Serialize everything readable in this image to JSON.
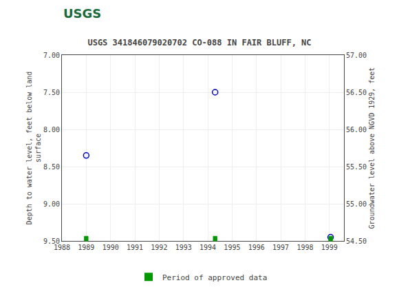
{
  "chart_data": {
    "type": "scatter",
    "title": "USGS 341846079020702 CO-088 IN FAIR BLUFF, NC",
    "annotations": [
      {
        "text": "USGS"
      }
    ],
    "ylabel": "Depth to water level, feet below land\nsurface",
    "y2label": "Groundwater level above NGVD 1929, feet",
    "xlim": [
      1988,
      1999.6
    ],
    "xticks": [
      1988,
      1989,
      1990,
      1991,
      1992,
      1993,
      1994,
      1995,
      1996,
      1997,
      1998,
      1999
    ],
    "ylim": [
      9.5,
      7.0
    ],
    "yticks": [
      {
        "value": 7.0,
        "label": "7.00"
      },
      {
        "value": 7.5,
        "label": "7.50"
      },
      {
        "value": 8.0,
        "label": "8.00"
      },
      {
        "value": 8.5,
        "label": "8.50"
      },
      {
        "value": 9.0,
        "label": "9.00"
      },
      {
        "value": 9.5,
        "label": "9.50"
      }
    ],
    "y2lim": [
      54.5,
      57.0
    ],
    "y2ticks": [
      {
        "value": 57.0,
        "label": "57.00"
      },
      {
        "value": 56.5,
        "label": "56.50"
      },
      {
        "value": 56.0,
        "label": "56.00"
      },
      {
        "value": 55.5,
        "label": "55.50"
      },
      {
        "value": 55.0,
        "label": "55.00"
      },
      {
        "value": 54.5,
        "label": "54.50"
      }
    ],
    "grid": true,
    "legend": "bottom",
    "series": [
      {
        "type": "scatter",
        "x": [
          1989.0,
          1994.3,
          1999.05
        ],
        "values": [
          8.35,
          7.5,
          9.45
        ],
        "color": "#0000cc",
        "marker": "circle-open"
      },
      {
        "type": "span",
        "name": "Period of approved data",
        "color": "#009900",
        "x": [
          1989.0,
          1994.3,
          1999.05
        ],
        "widths": [
          0.15,
          0.15,
          0.15
        ]
      }
    ]
  }
}
